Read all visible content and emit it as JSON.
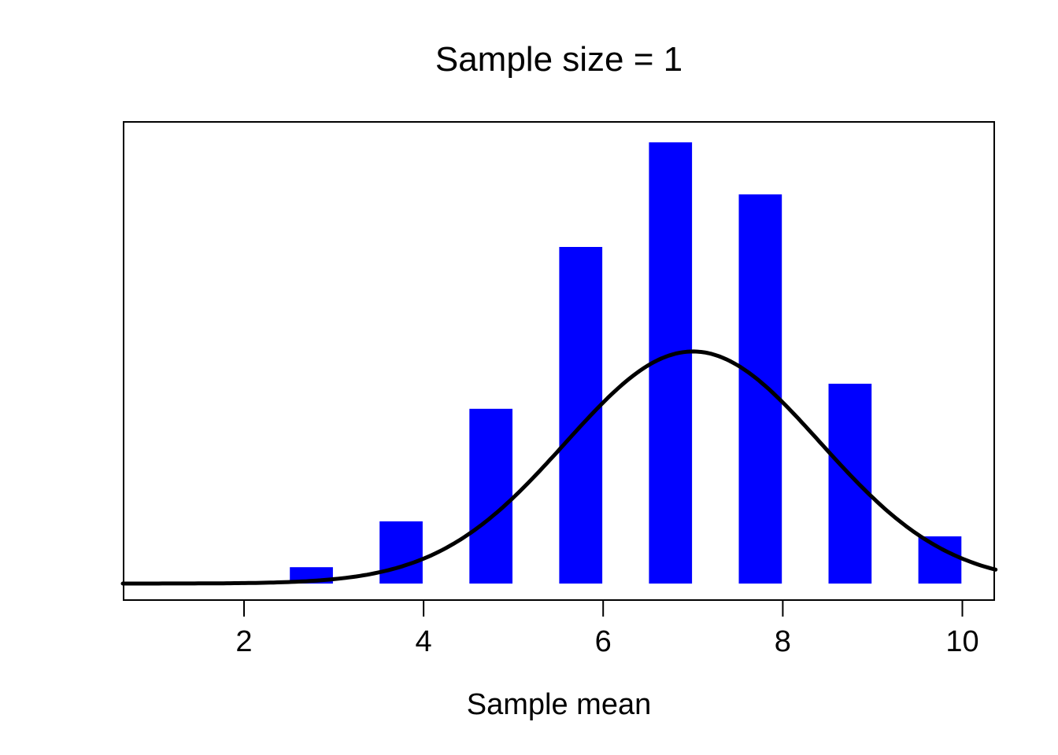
{
  "title": "Sample size = 1",
  "xlabel": "Sample mean",
  "colors": {
    "background": "#FFFFFF",
    "bar": "#0000FF",
    "curve": "#000000",
    "axis": "#000000",
    "text": "#000000"
  },
  "chart_data": {
    "type": "bar",
    "title": "Sample size = 1",
    "xlabel": "Sample mean",
    "ylabel": "",
    "y_axis_shown": false,
    "grid": false,
    "legend": null,
    "x_ticks": [
      2,
      4,
      6,
      8,
      10
    ],
    "x_tick_labels": [
      "2",
      "4",
      "6",
      "8",
      "10"
    ],
    "xlim": [
      0.65,
      10.4
    ],
    "bar_centers": [
      2.75,
      3.75,
      4.75,
      5.75,
      6.75,
      7.75,
      8.75,
      9.75
    ],
    "bar_width": 0.48,
    "bar_heights_relative": [
      0.037,
      0.141,
      0.396,
      0.763,
      1.0,
      0.882,
      0.453,
      0.107
    ],
    "bar_probabilities": [
      0.01,
      0.037,
      0.105,
      0.202,
      0.265,
      0.233,
      0.12,
      0.028
    ],
    "bar_color": "#0000FF",
    "overlay_curve": {
      "type": "normal-density",
      "mean": 7.0,
      "sd": 1.42,
      "peak_height_relative": 0.526,
      "color": "#000000"
    }
  }
}
